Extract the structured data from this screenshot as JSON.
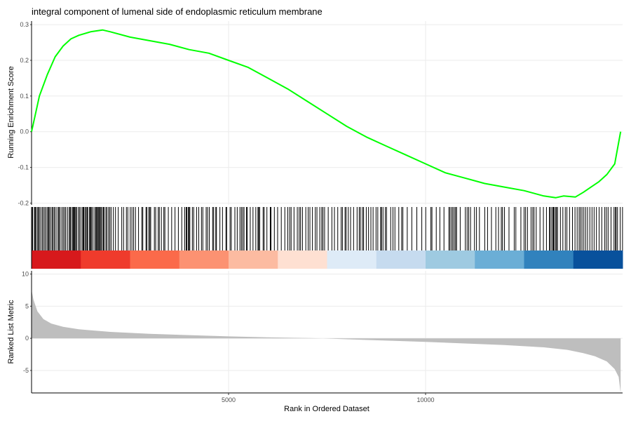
{
  "chart_data": {
    "type": "line",
    "title": "integral component of lumenal side of endoplasmic reticulum membrane",
    "xlabel": "Rank in Ordered Dataset",
    "xlim": [
      0,
      15000
    ],
    "x_ticks": [
      5000,
      10000
    ],
    "colors": {
      "es_line": "#00ff00",
      "hit_line": "#000000",
      "metric_fill": "#bebebe",
      "grid": "#ebebeb",
      "gradient": [
        "#d7191c",
        "#ef3b2c",
        "#fb6a4a",
        "#fc9272",
        "#fcbba1",
        "#fee0d2",
        "#deebf7",
        "#c6dbef",
        "#9ecae1",
        "#6baed6",
        "#3182bd",
        "#08519c"
      ]
    },
    "panels": [
      {
        "name": "running-enrichment-score",
        "ylabel": "Running Enrichment Score",
        "ylim": [
          -0.205,
          0.31
        ],
        "y_ticks": [
          -0.2,
          -0.1,
          0.0,
          0.1,
          0.2,
          0.3
        ],
        "y_tick_labels": [
          "-0.2",
          "-0.1",
          "0.0",
          "0.1",
          "0.2",
          "0.3"
        ],
        "series": [
          {
            "x": [
              0,
              100,
              200,
              400,
              600,
              800,
              1000,
              1200,
              1500,
              1800,
              2000,
              2500,
              3000,
              3500,
              4000,
              4500,
              5000,
              5500,
              6000,
              6500,
              7000,
              7500,
              8000,
              8500,
              9000,
              9500,
              10000,
              10500,
              11000,
              11500,
              12000,
              12500,
              13000,
              13300,
              13500,
              13800,
              14000,
              14200,
              14400,
              14600,
              14800,
              14950
            ],
            "y": [
              0.0,
              0.05,
              0.1,
              0.16,
              0.21,
              0.24,
              0.26,
              0.27,
              0.28,
              0.285,
              0.28,
              0.265,
              0.255,
              0.245,
              0.23,
              0.22,
              0.2,
              0.18,
              0.15,
              0.12,
              0.085,
              0.05,
              0.015,
              -0.015,
              -0.04,
              -0.065,
              -0.09,
              -0.115,
              -0.13,
              -0.145,
              -0.155,
              -0.165,
              -0.18,
              -0.185,
              -0.18,
              -0.183,
              -0.17,
              -0.155,
              -0.14,
              -0.12,
              -0.09,
              0.0
            ]
          }
        ]
      },
      {
        "name": "gene-hits",
        "hits_note": "vertical bars at gene-set member ranks; color band shows ranked metric gradient (red positive to blue negative)"
      },
      {
        "name": "ranked-list-metric",
        "ylabel": "Ranked List Metric",
        "ylim": [
          -8.5,
          10.5
        ],
        "y_ticks": [
          -5,
          0,
          5,
          10
        ],
        "y_tick_labels": [
          "-5",
          "0",
          "5",
          "10"
        ],
        "series": [
          {
            "x": [
              0,
              50,
              150,
              300,
              500,
              800,
              1200,
              2000,
              3000,
              4000,
              5000,
              6000,
              7000,
              7400,
              8000,
              9000,
              10000,
              11000,
              12000,
              13000,
              13600,
              14000,
              14300,
              14600,
              14800,
              14900,
              14950
            ],
            "y": [
              7.5,
              6.0,
              4.2,
              3.0,
              2.3,
              1.8,
              1.4,
              1.0,
              0.7,
              0.5,
              0.3,
              0.15,
              0.05,
              0.0,
              -0.15,
              -0.35,
              -0.55,
              -0.8,
              -1.05,
              -1.4,
              -1.8,
              -2.3,
              -2.8,
              -3.6,
              -4.8,
              -6.0,
              -8.5
            ]
          }
        ]
      }
    ]
  }
}
